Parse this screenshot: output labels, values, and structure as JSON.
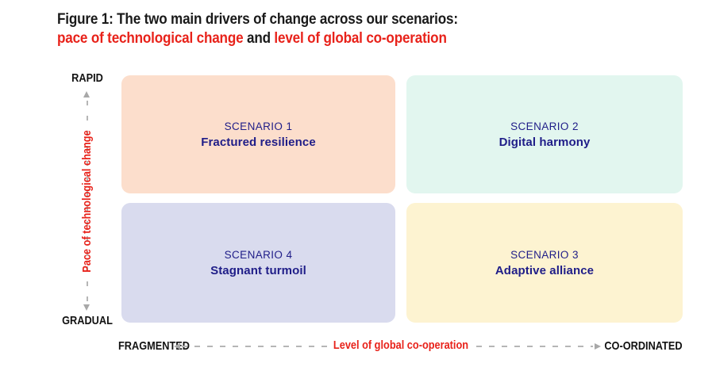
{
  "figure": {
    "title_line1": "Figure 1: The two main drivers of change across our scenarios:",
    "title_line2": {
      "part1_red": "pace of technological change",
      "connector": " and ",
      "part2_red": "level of global co-operation"
    }
  },
  "y_axis": {
    "top": "RAPID",
    "bottom": "GRADUAL",
    "caption": "Pace of technological change"
  },
  "x_axis": {
    "left": "FRAGMENTED",
    "right": "CO-ORDINATED",
    "caption": "Level of global co-operation"
  },
  "quadrants": [
    {
      "label": "SCENARIO 1",
      "name": "Fractured resilience",
      "bg": "#fcdecc"
    },
    {
      "label": "SCENARIO 2",
      "name": "Digital harmony",
      "bg": "#e2f6ef"
    },
    {
      "label": "SCENARIO 3",
      "name": "Adaptive alliance",
      "bg": "#fdf3d1"
    },
    {
      "label": "SCENARIO 4",
      "name": "Stagnant turmoil",
      "bg": "#d9dbee"
    }
  ],
  "colors": {
    "accent_red": "#e8221a",
    "navy": "#1f1d88",
    "axis_gray": "#b6b6b6",
    "text_black": "#1a1a1a"
  }
}
